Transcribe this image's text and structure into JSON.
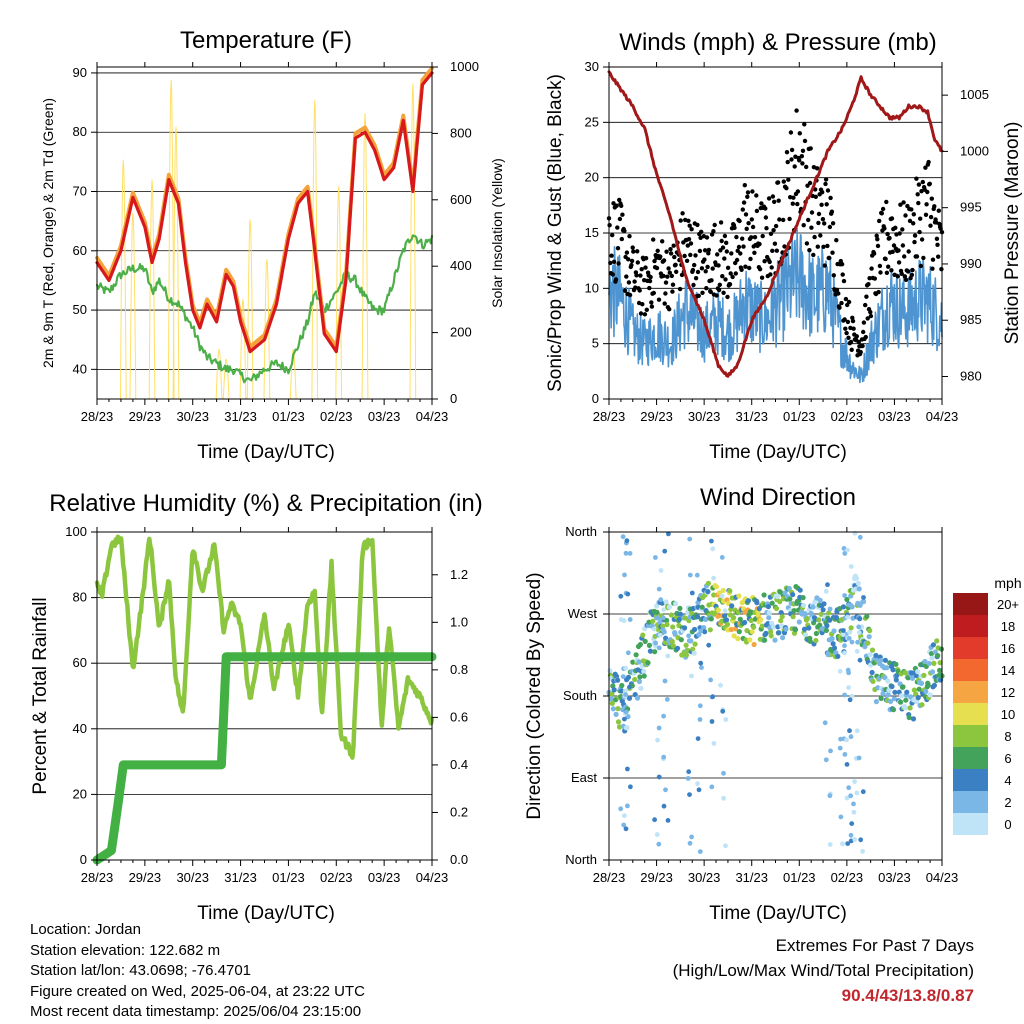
{
  "panels": {
    "temperature": {
      "title": "Temperature (F)",
      "xlabel": "Time (Day/UTC)",
      "ylabel": "2m & 9m T (Red, Orange) & 2m Td (Green)",
      "y2label": "Solar Insolation (Yellow)"
    },
    "winds": {
      "title": "Winds (mph) & Pressure (mb)",
      "xlabel": "Time (Day/UTC)",
      "ylabel": "Sonic/Prop Wind & Gust (Blue, Black)",
      "y2label": "Station Pressure (Maroon)"
    },
    "humidity": {
      "title": "Relative Humidity (%) & Precipitation (in)",
      "xlabel": "Time (Day/UTC)",
      "ylabel": "Percent & Total Rainfall"
    },
    "direction": {
      "title": "Wind Direction",
      "xlabel": "Time (Day/UTC)",
      "ylabel": "Direction (Colored By Speed)",
      "legend_title": "mph"
    }
  },
  "info": {
    "location": "Location: Jordan",
    "elevation": "Station elevation: 122.682 m",
    "latlon": "Station lat/lon: 43.0698; -76.4701",
    "created": "Figure created on Wed, 2025-06-04, at 23:22 UTC",
    "timestamp": "Most recent data timestamp: 2025/06/04 23:15:00"
  },
  "extremes": {
    "line1": "Extremes For Past 7 Days",
    "line2": "(High/Low/Max Wind/Total Precipitation)",
    "values": "90.4/43/13.8/0.87"
  },
  "colors": {
    "temp2m": "#d7191c",
    "temp9m": "#f4a23a",
    "dewpoint": "#4daf4a",
    "solar": "#ffe066",
    "wind": "#4d94d0",
    "gust": "#000000",
    "pressure": "#a01818",
    "rh": "#8cc63f",
    "precip": "#43b043"
  },
  "chart_data": [
    {
      "type": "line",
      "title": "Temperature (F)",
      "xlabel": "Time (Day/UTC)",
      "ylabel": "2m & 9m T (Red, Orange) & 2m Td (Green)",
      "y2label": "Solar Insolation (Yellow)",
      "x_ticks": [
        "28/23",
        "29/23",
        "30/23",
        "31/23",
        "01/23",
        "02/23",
        "03/23",
        "04/23"
      ],
      "ylim": [
        35,
        91
      ],
      "y_ticks": [
        40,
        50,
        60,
        70,
        80,
        90
      ],
      "y2lim": [
        0,
        1000
      ],
      "y2_ticks": [
        0,
        200,
        400,
        600,
        800,
        1000
      ],
      "x_day": [
        0,
        0.25,
        0.5,
        0.75,
        1.0,
        1.15,
        1.3,
        1.5,
        1.7,
        1.85,
        2.0,
        2.15,
        2.3,
        2.5,
        2.7,
        2.85,
        3.0,
        3.2,
        3.5,
        3.75,
        4.0,
        4.2,
        4.4,
        4.55,
        4.75,
        5.0,
        5.2,
        5.4,
        5.6,
        5.8,
        6.0,
        6.2,
        6.4,
        6.6,
        6.8,
        7.0
      ],
      "series": [
        {
          "name": "2m T",
          "values": [
            58,
            55,
            60,
            69,
            64,
            58,
            62,
            72,
            68,
            58,
            50,
            47,
            51,
            48,
            56,
            54,
            48,
            43,
            45,
            51,
            62,
            68,
            70,
            60,
            46,
            43,
            55,
            79,
            80,
            77,
            72,
            74,
            82,
            70,
            88,
            90
          ]
        },
        {
          "name": "2m Td",
          "values": [
            54,
            53,
            56,
            57,
            57,
            53,
            55,
            52,
            51,
            49,
            47,
            44,
            42,
            41,
            40,
            40,
            39,
            38,
            40,
            41,
            40,
            44,
            48,
            53,
            50,
            53,
            56,
            55,
            52,
            50,
            50,
            55,
            60,
            63,
            61,
            62
          ]
        },
        {
          "name": "Solar Insolation",
          "axis": "y2",
          "peaks": [
            {
              "day": 0.55,
              "value": 720
            },
            {
              "day": 0.75,
              "value": 560
            },
            {
              "day": 1.15,
              "value": 660
            },
            {
              "day": 1.55,
              "value": 960
            },
            {
              "day": 1.65,
              "value": 820
            },
            {
              "day": 2.55,
              "value": 150
            },
            {
              "day": 2.7,
              "value": 120
            },
            {
              "day": 3.05,
              "value": 300
            },
            {
              "day": 3.2,
              "value": 540
            },
            {
              "day": 3.55,
              "value": 420
            },
            {
              "day": 4.1,
              "value": 150
            },
            {
              "day": 4.55,
              "value": 900
            },
            {
              "day": 5.05,
              "value": 640
            },
            {
              "day": 5.6,
              "value": 860
            },
            {
              "day": 6.6,
              "value": 950
            }
          ]
        }
      ]
    },
    {
      "type": "line",
      "title": "Winds (mph) & Pressure (mb)",
      "xlabel": "Time (Day/UTC)",
      "ylabel": "Sonic/Prop Wind & Gust (Blue, Black)",
      "y2label": "Station Pressure (Maroon)",
      "x_ticks": [
        "28/23",
        "29/23",
        "30/23",
        "31/23",
        "01/23",
        "02/23",
        "03/23",
        "04/23"
      ],
      "ylim": [
        0,
        30
      ],
      "y_ticks": [
        0,
        5,
        10,
        15,
        20,
        25,
        30
      ],
      "y2lim": [
        978,
        1007.5
      ],
      "y2_ticks": [
        980,
        985,
        990,
        995,
        1000,
        1005
      ],
      "x_day": [
        0,
        0.25,
        0.5,
        0.75,
        1.0,
        1.3,
        1.6,
        2.0,
        2.3,
        2.5,
        2.7,
        2.85,
        3.0,
        3.3,
        3.6,
        4.0,
        4.3,
        4.6,
        4.9,
        5.1,
        5.3,
        5.5,
        5.7,
        5.9,
        6.1,
        6.3,
        6.5,
        6.7,
        6.85,
        7.0
      ],
      "series": [
        {
          "name": "Station Pressure",
          "axis": "y2",
          "values": [
            1007,
            1005.5,
            1004,
            1002,
            998,
            994,
            989,
            985,
            981,
            980,
            981,
            983,
            985,
            987,
            990,
            994,
            997,
            1000,
            1002,
            1004,
            1006.5,
            1005,
            1004,
            1003,
            1003,
            1004,
            1004,
            1003.5,
            1001,
            1000
          ]
        },
        {
          "name": "Sonic/Prop Wind",
          "values": [
            10,
            9,
            6,
            5,
            6,
            5,
            8,
            6,
            7,
            6,
            7,
            9,
            8,
            7,
            9,
            11,
            9,
            10,
            5,
            3,
            2,
            5,
            7,
            9,
            8,
            8,
            9,
            9,
            8,
            7
          ]
        },
        {
          "name": "Gust",
          "values": [
            15,
            14,
            11,
            10,
            12,
            11,
            14,
            12,
            13,
            12,
            13,
            16,
            15,
            14,
            16,
            22,
            17,
            16,
            10,
            6,
            5,
            10,
            13,
            15,
            14,
            14,
            16,
            18,
            15,
            13
          ]
        }
      ]
    },
    {
      "type": "line",
      "title": "Relative Humidity (%) & Precipitation (in)",
      "xlabel": "Time (Day/UTC)",
      "ylabel": "Percent & Total Rainfall",
      "x_ticks": [
        "28/23",
        "29/23",
        "30/23",
        "31/23",
        "01/23",
        "02/23",
        "03/23",
        "04/23"
      ],
      "ylim": [
        0,
        100
      ],
      "y_ticks": [
        0,
        20,
        40,
        60,
        80,
        100
      ],
      "y2lim": [
        0,
        1.38
      ],
      "y2_ticks": [
        0.0,
        0.2,
        0.4,
        0.6,
        0.8,
        1.0,
        1.2
      ],
      "x_day": [
        0,
        0.1,
        0.3,
        0.5,
        0.75,
        0.95,
        1.1,
        1.3,
        1.5,
        1.65,
        1.8,
        2.0,
        2.2,
        2.45,
        2.65,
        2.8,
        3.0,
        3.2,
        3.5,
        3.7,
        4.0,
        4.2,
        4.4,
        4.55,
        4.7,
        4.9,
        5.1,
        5.35,
        5.55,
        5.75,
        5.95,
        6.1,
        6.3,
        6.5,
        6.75,
        7.0
      ],
      "series": [
        {
          "name": "Relative Humidity",
          "values": [
            84,
            80,
            96,
            98,
            58,
            80,
            99,
            70,
            86,
            55,
            44,
            96,
            82,
            96,
            70,
            78,
            72,
            48,
            75,
            52,
            72,
            50,
            78,
            82,
            44,
            90,
            38,
            32,
            95,
            98,
            40,
            72,
            40,
            55,
            50,
            42
          ]
        },
        {
          "name": "Total Precipitation",
          "axis": "y2",
          "day_points": [
            0,
            0.3,
            0.45,
            0.55,
            2.6,
            2.65,
            2.7,
            7.0
          ],
          "values": [
            0,
            0.04,
            0.25,
            0.4,
            0.4,
            0.62,
            0.855,
            0.855
          ]
        }
      ]
    },
    {
      "type": "scatter",
      "title": "Wind Direction",
      "xlabel": "Time (Day/UTC)",
      "ylabel": "Direction (Colored By Speed)",
      "x_ticks": [
        "28/23",
        "29/23",
        "30/23",
        "31/23",
        "01/23",
        "02/23",
        "03/23",
        "04/23"
      ],
      "y_ticks": [
        "North",
        "East",
        "South",
        "West",
        "North"
      ],
      "ylim": [
        0,
        360
      ],
      "legend_title": "mph",
      "colorbar": [
        {
          "label": "20+",
          "color": "#971616"
        },
        {
          "label": "18",
          "color": "#bf1c1f"
        },
        {
          "label": "16",
          "color": "#e23b2b"
        },
        {
          "label": "14",
          "color": "#f2682f"
        },
        {
          "label": "12",
          "color": "#f6a543"
        },
        {
          "label": "10",
          "color": "#e6e050"
        },
        {
          "label": "8",
          "color": "#8cc63f"
        },
        {
          "label": "6",
          "color": "#43a35a"
        },
        {
          "label": "4",
          "color": "#3b80c2"
        },
        {
          "label": "2",
          "color": "#7ab6e6"
        },
        {
          "label": "0",
          "color": "#bfe3f7"
        }
      ],
      "x_day": [
        0,
        0.3,
        0.6,
        0.9,
        1.2,
        1.5,
        1.8,
        2.1,
        2.4,
        2.8,
        3.2,
        3.6,
        4.0,
        4.3,
        4.6,
        4.9,
        5.2,
        5.6,
        6.0,
        6.4,
        6.8,
        7.0
      ],
      "direction": [
        205,
        160,
        205,
        250,
        265,
        250,
        250,
        280,
        280,
        260,
        265,
        270,
        275,
        265,
        250,
        250,
        290,
        200,
        190,
        180,
        210,
        220
      ]
    }
  ]
}
